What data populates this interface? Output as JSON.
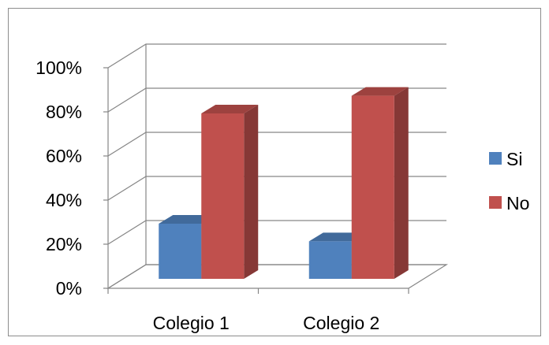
{
  "chart_data": {
    "type": "bar",
    "categories": [
      "Colegio 1",
      "Colegio 2"
    ],
    "series": [
      {
        "name": "Si",
        "values": [
          25,
          17
        ],
        "color": "#4F81BD"
      },
      {
        "name": "No",
        "values": [
          75,
          83
        ],
        "color": "#C0504D"
      }
    ],
    "y_ticks": [
      "0%",
      "20%",
      "40%",
      "60%",
      "80%",
      "100%"
    ],
    "ylim": [
      0,
      100
    ],
    "grid": true,
    "legend_position": "right",
    "style": "3d-clustered-column"
  }
}
